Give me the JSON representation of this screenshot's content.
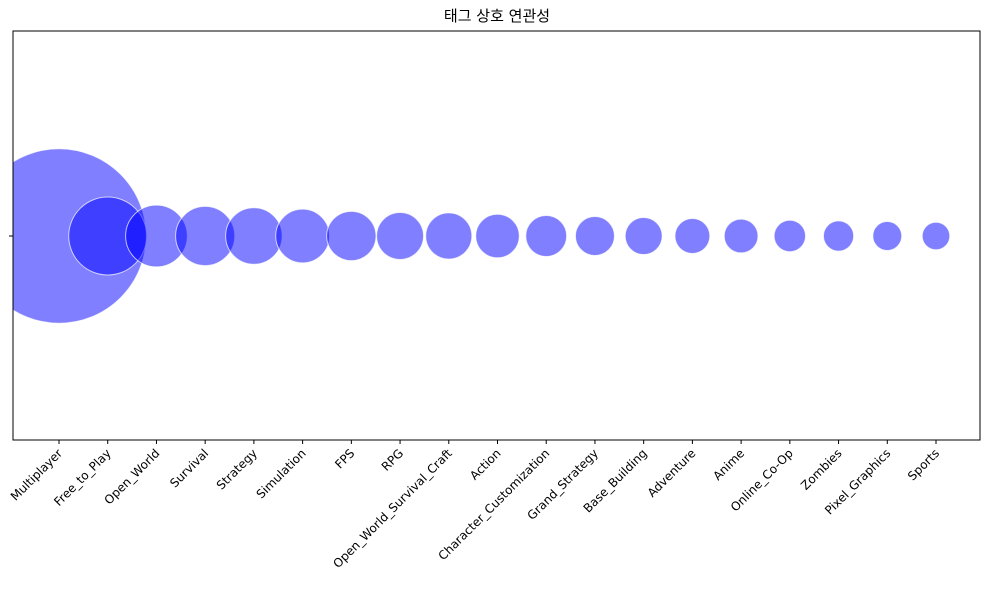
{
  "chart_data": {
    "type": "scatter",
    "title": "태그 상호 연관성",
    "xlabel": "",
    "ylabel": "",
    "categories": [
      "Multiplayer",
      "Free_to_Play",
      "Open_World",
      "Survival",
      "Strategy",
      "Simulation",
      "FPS",
      "RPG",
      "Open_World_Survival_Craft",
      "Action",
      "Character_Customization",
      "Grand_Strategy",
      "Base_Building",
      "Adventure",
      "Anime",
      "Online_Co-Op",
      "Zombies",
      "Pixel_Graphics",
      "Sports"
    ],
    "values": [
      2000,
      400,
      250,
      230,
      210,
      190,
      160,
      145,
      140,
      125,
      110,
      100,
      90,
      80,
      75,
      65,
      60,
      55,
      50
    ],
    "grid": false,
    "color": "#0000ff",
    "alpha": 0.5,
    "edgecolor": "#ffffff"
  }
}
